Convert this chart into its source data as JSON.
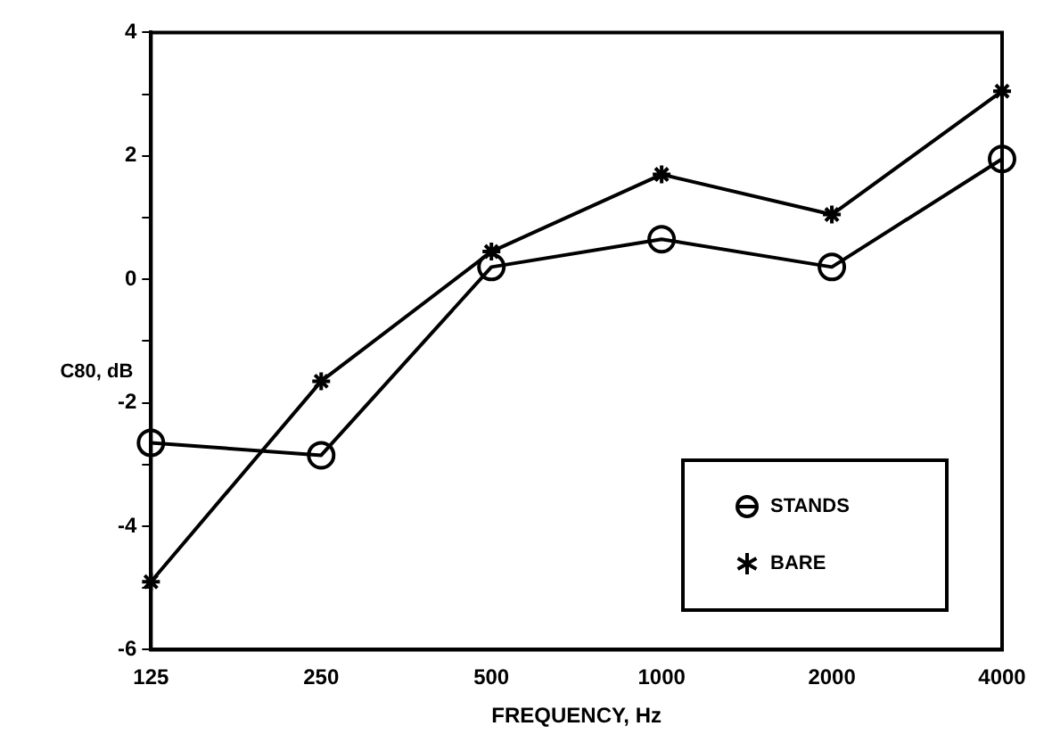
{
  "chart_data": {
    "type": "line",
    "xlabel": "FREQUENCY, Hz",
    "ylabel": "C80, dB",
    "categories": [
      "125",
      "250",
      "500",
      "1000",
      "2000",
      "4000"
    ],
    "series": [
      {
        "name": "STANDS",
        "color": "#000000",
        "marker": "circle",
        "values": [
          -2.65,
          -2.85,
          0.2,
          0.65,
          0.2,
          1.95
        ]
      },
      {
        "name": "BARE",
        "color": "#000000",
        "marker": "cross",
        "values": [
          -4.9,
          -1.65,
          0.45,
          1.7,
          1.05,
          3.05
        ]
      }
    ],
    "ylim": [
      -6,
      4
    ],
    "yticks": [
      -6,
      {
        "value": -5,
        "label": null
      },
      -4,
      {
        "value": -3,
        "label": null
      },
      -2,
      {
        "value": -1,
        "label": null
      },
      0,
      {
        "value": 1,
        "label": null
      },
      2,
      {
        "value": 3,
        "label": null
      },
      4
    ],
    "grid": false,
    "legend": "bottom right",
    "line_style": "solid"
  }
}
